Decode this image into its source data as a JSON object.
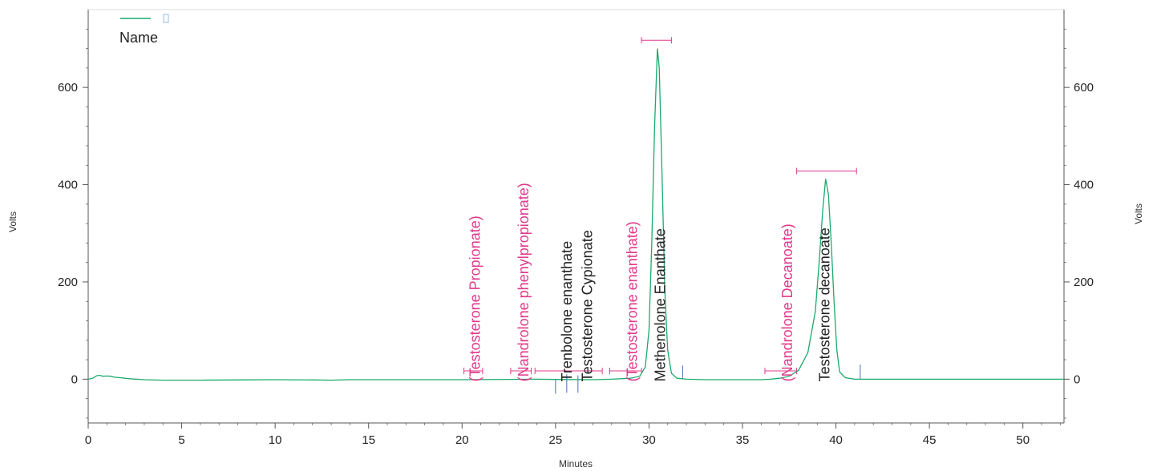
{
  "chart_data": {
    "type": "line",
    "xlabel": "Minutes",
    "ylabel_left": "Volts",
    "ylabel_right": "Volts",
    "xlim": [
      0,
      52.2
    ],
    "ylim": [
      -90,
      760
    ],
    "x_ticks": [
      0,
      5,
      10,
      15,
      20,
      25,
      30,
      35,
      40,
      45,
      50
    ],
    "y_ticks": [
      0,
      200,
      400,
      600
    ],
    "grid": false,
    "legend": {
      "placement": "top-left",
      "entries": [
        "Name"
      ]
    },
    "series": [
      {
        "color": "#1aaa6e",
        "points": [
          [
            0,
            0
          ],
          [
            0.25,
            2
          ],
          [
            0.45,
            7
          ],
          [
            0.6,
            8
          ],
          [
            0.8,
            6
          ],
          [
            1.0,
            6.5
          ],
          [
            1.2,
            6
          ],
          [
            1.4,
            4
          ],
          [
            1.7,
            3
          ],
          [
            2.2,
            1
          ],
          [
            3,
            -1
          ],
          [
            4,
            -2
          ],
          [
            6,
            -2
          ],
          [
            8,
            -1.5
          ],
          [
            10,
            -1
          ],
          [
            12,
            -1.5
          ],
          [
            13,
            -2
          ],
          [
            14,
            -1
          ],
          [
            16,
            -1
          ],
          [
            20,
            -1
          ],
          [
            24,
            0
          ],
          [
            25,
            -0.5
          ],
          [
            27,
            -1
          ],
          [
            28,
            0
          ],
          [
            29,
            2
          ],
          [
            29.5,
            6
          ],
          [
            29.8,
            25
          ],
          [
            30.0,
            100
          ],
          [
            30.15,
            280
          ],
          [
            30.3,
            520
          ],
          [
            30.45,
            680
          ],
          [
            30.55,
            640
          ],
          [
            30.7,
            420
          ],
          [
            30.85,
            180
          ],
          [
            31.0,
            60
          ],
          [
            31.2,
            12
          ],
          [
            31.5,
            2
          ],
          [
            32,
            0
          ],
          [
            33,
            -1
          ],
          [
            35,
            -1
          ],
          [
            36,
            -1
          ],
          [
            36.5,
            0
          ],
          [
            37,
            2
          ],
          [
            37.5,
            6
          ],
          [
            38,
            18
          ],
          [
            38.5,
            55
          ],
          [
            38.9,
            140
          ],
          [
            39.1,
            240
          ],
          [
            39.3,
            350
          ],
          [
            39.45,
            412
          ],
          [
            39.6,
            380
          ],
          [
            39.75,
            280
          ],
          [
            39.9,
            160
          ],
          [
            40.05,
            60
          ],
          [
            40.2,
            15
          ],
          [
            40.5,
            3
          ],
          [
            41,
            0
          ],
          [
            43,
            0
          ],
          [
            46,
            0
          ],
          [
            50,
            0
          ],
          [
            52.2,
            0
          ]
        ]
      }
    ],
    "annotations": [
      {
        "text": "(Testosterone Propionate)",
        "x": 20.7,
        "color": "#e0388a"
      },
      {
        "text": "(Nandrolone phenylpropionate)",
        "x": 23.3,
        "color": "#e0388a"
      },
      {
        "text": "Trenbolone enanthate",
        "x": 25.6,
        "color": "#222222"
      },
      {
        "text": "Testosterone Cypionate",
        "x": 26.7,
        "color": "#222222"
      },
      {
        "text": "(Testosterone enanthate)",
        "x": 29.1,
        "color": "#e0388a"
      },
      {
        "text": "Methenolone Enanthate",
        "x": 30.6,
        "color": "#222222"
      },
      {
        "text": "(Nandrolone Decanoate)",
        "x": 37.4,
        "color": "#e0388a"
      },
      {
        "text": "Testosterone decanoate",
        "x": 39.4,
        "color": "#222222"
      }
    ],
    "expected_windows": [
      {
        "x1": 20.1,
        "x2": 21.1,
        "y": 17,
        "color": "#e0388a"
      },
      {
        "x1": 22.6,
        "x2": 23.7,
        "y": 17,
        "color": "#e0388a"
      },
      {
        "x1": 23.9,
        "x2": 27.5,
        "y": 17,
        "color": "#e0388a"
      },
      {
        "x1": 27.9,
        "x2": 29.6,
        "y": 17,
        "color": "#e0388a"
      },
      {
        "x1": 29.6,
        "x2": 31.2,
        "y": 697,
        "color": "#e0388a"
      },
      {
        "x1": 36.2,
        "x2": 37.9,
        "y": 17,
        "color": "#e0388a"
      },
      {
        "x1": 37.9,
        "x2": 41.1,
        "y": 428,
        "color": "#e0388a"
      }
    ],
    "baseline_markers": [
      {
        "x": 25.0,
        "y1": 0,
        "y2": -30
      },
      {
        "x": 25.6,
        "y1": 10,
        "y2": -28
      },
      {
        "x": 26.2,
        "y1": 8,
        "y2": -28
      },
      {
        "x": 31.8,
        "y1": 28,
        "y2": 0
      },
      {
        "x": 41.3,
        "y1": 30,
        "y2": 0
      }
    ]
  },
  "legend": {
    "name_label": "Name"
  },
  "axes": {
    "x_title": "Minutes",
    "y_left_title": "Volts",
    "y_right_title": "Volts"
  },
  "colors": {
    "trace": "#1aaa6e",
    "window": "#e0388a",
    "axis": "#555555",
    "marker": "#4a6fb8"
  }
}
